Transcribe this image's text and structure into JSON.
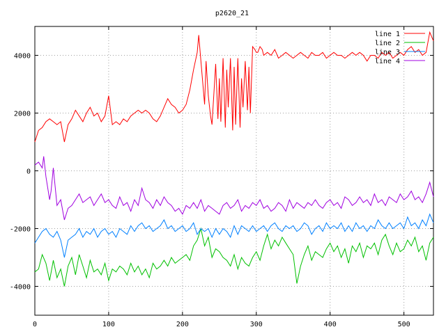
{
  "chart_data": {
    "type": "line",
    "title": "p2620_21",
    "xlabel": "",
    "ylabel": "",
    "xlim": [
      0,
      540
    ],
    "ylim": [
      -5000,
      5000
    ],
    "x_ticks": [
      0,
      100,
      200,
      300,
      400,
      500
    ],
    "y_ticks": [
      -4000,
      -2000,
      0,
      2000,
      4000
    ],
    "grid": true,
    "legend_position": "top-right",
    "series": [
      {
        "name": "line 1",
        "color": "#ff0000",
        "x": [
          0,
          5,
          10,
          15,
          20,
          25,
          30,
          35,
          40,
          45,
          50,
          55,
          60,
          65,
          70,
          75,
          80,
          85,
          90,
          95,
          100,
          105,
          110,
          115,
          120,
          125,
          130,
          135,
          140,
          145,
          150,
          155,
          160,
          165,
          170,
          175,
          180,
          185,
          190,
          195,
          200,
          205,
          210,
          215,
          220,
          222,
          225,
          230,
          232,
          235,
          238,
          240,
          245,
          248,
          250,
          252,
          255,
          258,
          260,
          262,
          265,
          268,
          270,
          272,
          275,
          278,
          280,
          282,
          285,
          288,
          290,
          292,
          295,
          298,
          300,
          302,
          305,
          308,
          310,
          315,
          320,
          325,
          330,
          335,
          340,
          345,
          350,
          355,
          360,
          365,
          370,
          375,
          380,
          385,
          390,
          395,
          400,
          405,
          410,
          415,
          420,
          425,
          430,
          435,
          440,
          445,
          450,
          455,
          460,
          465,
          470,
          475,
          480,
          485,
          490,
          495,
          500,
          505,
          510,
          515,
          520,
          525,
          530,
          535,
          540
        ],
        "y": [
          1000,
          1400,
          1500,
          1700,
          1800,
          1700,
          1600,
          1700,
          1000,
          1600,
          1800,
          2100,
          1900,
          1700,
          2000,
          2200,
          1900,
          2000,
          1700,
          1900,
          2600,
          1600,
          1700,
          1600,
          1800,
          1700,
          1900,
          2000,
          2100,
          2000,
          2100,
          2000,
          1800,
          1700,
          1900,
          2200,
          2500,
          2300,
          2200,
          2000,
          2100,
          2300,
          2800,
          3500,
          4100,
          4700,
          3800,
          2300,
          3800,
          2600,
          1900,
          1600,
          3700,
          1800,
          3200,
          1700,
          3900,
          1500,
          3500,
          2200,
          3900,
          1400,
          3600,
          1600,
          3900,
          1500,
          3200,
          2200,
          3800,
          2100,
          3600,
          2000,
          4300,
          4200,
          4100,
          4100,
          4300,
          4200,
          4000,
          4100,
          4000,
          4200,
          3900,
          4000,
          4100,
          4000,
          3900,
          4000,
          4100,
          4000,
          3900,
          4100,
          4000,
          4000,
          4100,
          3900,
          4000,
          4100,
          4000,
          4000,
          3900,
          4000,
          4100,
          4000,
          4100,
          4000,
          3800,
          4000,
          4000,
          3900,
          4100,
          4000,
          4100,
          3900,
          4000,
          4100,
          4000,
          4200,
          4300,
          4100,
          4200,
          4000,
          4100,
          4800,
          4500
        ]
      },
      {
        "name": "line 2",
        "color": "#00c000",
        "x": [
          0,
          5,
          10,
          15,
          20,
          25,
          30,
          35,
          40,
          45,
          50,
          55,
          60,
          65,
          70,
          75,
          80,
          85,
          90,
          95,
          100,
          105,
          110,
          115,
          120,
          125,
          130,
          135,
          140,
          145,
          150,
          155,
          160,
          165,
          170,
          175,
          180,
          185,
          190,
          195,
          200,
          205,
          210,
          215,
          220,
          225,
          230,
          235,
          240,
          245,
          250,
          255,
          260,
          265,
          270,
          275,
          280,
          285,
          290,
          295,
          300,
          305,
          310,
          315,
          320,
          325,
          330,
          335,
          340,
          345,
          350,
          355,
          360,
          365,
          370,
          375,
          380,
          385,
          390,
          395,
          400,
          405,
          410,
          415,
          420,
          425,
          430,
          435,
          440,
          445,
          450,
          455,
          460,
          465,
          470,
          475,
          480,
          485,
          490,
          495,
          500,
          505,
          510,
          515,
          520,
          525,
          530,
          535,
          540
        ],
        "y": [
          -3500,
          -3400,
          -2900,
          -3200,
          -3800,
          -3100,
          -3700,
          -3400,
          -4000,
          -3300,
          -3000,
          -3600,
          -2900,
          -3300,
          -3700,
          -3100,
          -3500,
          -3400,
          -3600,
          -3200,
          -3800,
          -3400,
          -3500,
          -3300,
          -3400,
          -3600,
          -3200,
          -3500,
          -3300,
          -3600,
          -3400,
          -3700,
          -3200,
          -3400,
          -3300,
          -3100,
          -3300,
          -3000,
          -3200,
          -3100,
          -3000,
          -2900,
          -3100,
          -2600,
          -2400,
          -2000,
          -2600,
          -2300,
          -3000,
          -2700,
          -2800,
          -3000,
          -3100,
          -3300,
          -2900,
          -3400,
          -3000,
          -3200,
          -3300,
          -3000,
          -2800,
          -3100,
          -2600,
          -2200,
          -2700,
          -2400,
          -2600,
          -2300,
          -2500,
          -2700,
          -2900,
          -3900,
          -3300,
          -2900,
          -2600,
          -3100,
          -2800,
          -2900,
          -3000,
          -2700,
          -2500,
          -2800,
          -2600,
          -3000,
          -2700,
          -3200,
          -2600,
          -2800,
          -2500,
          -3000,
          -2600,
          -2700,
          -2500,
          -2900,
          -2400,
          -2200,
          -2600,
          -2900,
          -2500,
          -2800,
          -2700,
          -2400,
          -2600,
          -2300,
          -2800,
          -2600,
          -3100,
          -2500,
          -2300
        ]
      },
      {
        "name": "line 3",
        "color": "#0080ff",
        "x": [
          0,
          5,
          10,
          15,
          20,
          25,
          30,
          35,
          40,
          45,
          50,
          55,
          60,
          65,
          70,
          75,
          80,
          85,
          90,
          95,
          100,
          105,
          110,
          115,
          120,
          125,
          130,
          135,
          140,
          145,
          150,
          155,
          160,
          165,
          170,
          175,
          180,
          185,
          190,
          195,
          200,
          205,
          210,
          215,
          220,
          225,
          230,
          235,
          240,
          245,
          250,
          255,
          260,
          265,
          270,
          275,
          280,
          285,
          290,
          295,
          300,
          305,
          310,
          315,
          320,
          325,
          330,
          335,
          340,
          345,
          350,
          355,
          360,
          365,
          370,
          375,
          380,
          385,
          390,
          395,
          400,
          405,
          410,
          415,
          420,
          425,
          430,
          435,
          440,
          445,
          450,
          455,
          460,
          465,
          470,
          475,
          480,
          485,
          490,
          495,
          500,
          505,
          510,
          515,
          520,
          525,
          530,
          535,
          540
        ],
        "y": [
          -2500,
          -2300,
          -2100,
          -2000,
          -2200,
          -2300,
          -2100,
          -2400,
          -3000,
          -2400,
          -2300,
          -2200,
          -2000,
          -2300,
          -2100,
          -2200,
          -2000,
          -2300,
          -2100,
          -2000,
          -2200,
          -2100,
          -2300,
          -2000,
          -2100,
          -2200,
          -1900,
          -2100,
          -1900,
          -1800,
          -2000,
          -1900,
          -2100,
          -2000,
          -1900,
          -1700,
          -2000,
          -1900,
          -2100,
          -2000,
          -1900,
          -2100,
          -2000,
          -1800,
          -2200,
          -2000,
          -2100,
          -2000,
          -2300,
          -2000,
          -2200,
          -2000,
          -2100,
          -2300,
          -1900,
          -2200,
          -1900,
          -2000,
          -2100,
          -1900,
          -2100,
          -2000,
          -1900,
          -2100,
          -1900,
          -1800,
          -2000,
          -2100,
          -1900,
          -2000,
          -1900,
          -2100,
          -2000,
          -1800,
          -1900,
          -2200,
          -2000,
          -1900,
          -2100,
          -1800,
          -2000,
          -1900,
          -2000,
          -1800,
          -2100,
          -1900,
          -2100,
          -1800,
          -2000,
          -1900,
          -2100,
          -1900,
          -2000,
          -1700,
          -1900,
          -2000,
          -1800,
          -2000,
          -1900,
          -1800,
          -2000,
          -1600,
          -1900,
          -1800,
          -2000,
          -1700,
          -1900,
          -1500,
          -1800
        ]
      },
      {
        "name": "line 4",
        "color": "#a000e0",
        "x": [
          0,
          5,
          10,
          12,
          15,
          20,
          22,
          25,
          30,
          35,
          40,
          45,
          50,
          55,
          60,
          65,
          70,
          75,
          80,
          85,
          90,
          95,
          100,
          105,
          110,
          115,
          120,
          125,
          130,
          135,
          140,
          145,
          150,
          155,
          160,
          165,
          170,
          175,
          180,
          185,
          190,
          195,
          200,
          205,
          210,
          215,
          220,
          225,
          230,
          235,
          240,
          245,
          250,
          255,
          260,
          265,
          270,
          275,
          280,
          285,
          290,
          295,
          300,
          305,
          310,
          315,
          320,
          325,
          330,
          335,
          340,
          345,
          350,
          355,
          360,
          365,
          370,
          375,
          380,
          385,
          390,
          395,
          400,
          405,
          410,
          415,
          420,
          425,
          430,
          435,
          440,
          445,
          450,
          455,
          460,
          465,
          470,
          475,
          480,
          485,
          490,
          495,
          500,
          505,
          510,
          515,
          520,
          525,
          530,
          535,
          540
        ],
        "y": [
          200,
          300,
          100,
          500,
          -200,
          -1000,
          -700,
          100,
          -1200,
          -1000,
          -1700,
          -1300,
          -1200,
          -1000,
          -800,
          -1100,
          -1000,
          -900,
          -1200,
          -1000,
          -800,
          -1100,
          -1000,
          -1200,
          -1300,
          -900,
          -1200,
          -1100,
          -1400,
          -1000,
          -1200,
          -600,
          -1000,
          -1100,
          -1300,
          -1000,
          -1200,
          -900,
          -1100,
          -1200,
          -1400,
          -1300,
          -1500,
          -1200,
          -1300,
          -1100,
          -1300,
          -1000,
          -1400,
          -1200,
          -1300,
          -1400,
          -1500,
          -1200,
          -1100,
          -1300,
          -1200,
          -1000,
          -1400,
          -1200,
          -1300,
          -1100,
          -1200,
          -1000,
          -1300,
          -1200,
          -1400,
          -1300,
          -1100,
          -1200,
          -1400,
          -1000,
          -1300,
          -1100,
          -1200,
          -1300,
          -1100,
          -1200,
          -1000,
          -1200,
          -1300,
          -1100,
          -1000,
          -1200,
          -1100,
          -1300,
          -900,
          -1000,
          -1200,
          -1100,
          -900,
          -1100,
          -1000,
          -1200,
          -800,
          -1100,
          -1000,
          -1200,
          -900,
          -1000,
          -1100,
          -800,
          -1000,
          -900,
          -700,
          -1000,
          -900,
          -1100,
          -800,
          -400,
          -900
        ]
      }
    ]
  }
}
